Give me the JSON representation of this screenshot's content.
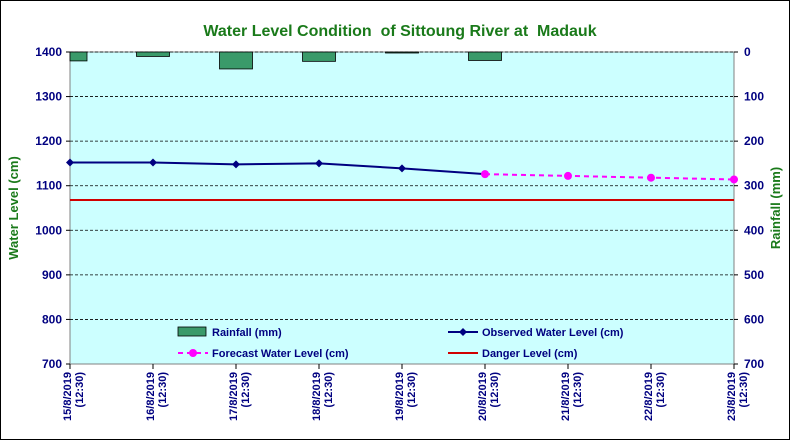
{
  "chart_data": {
    "type": "line",
    "title": "Water Level Condition  of Sittoung River at  Madauk",
    "ylabel_left": "Water Level (cm)",
    "ylabel_right": "Rainfall (mm)",
    "x_dates": [
      "15/8/2019",
      "16/8/2019",
      "17/8/2019",
      "18/8/2019",
      "19/8/2019",
      "20/8/2019",
      "21/8/2019",
      "22/8/2019",
      "23/8/2019"
    ],
    "x_time": "(12:30)",
    "ylim_left": [
      700,
      1400
    ],
    "yticks_left": [
      700,
      800,
      900,
      1000,
      1100,
      1200,
      1300,
      1400
    ],
    "ylim_right_inverted": [
      0,
      700
    ],
    "yticks_right": [
      0,
      100,
      200,
      300,
      400,
      500,
      600,
      700
    ],
    "grid": "horizontal dashed",
    "legend_placement": "bottom",
    "series": [
      {
        "name": "Rainfall (mm)",
        "kind": "bar",
        "axis": "right",
        "color": "#3a9a6a",
        "values": [
          20,
          10,
          38,
          21,
          2,
          19,
          null,
          null,
          null
        ]
      },
      {
        "name": "Observed Water Level (cm)",
        "kind": "line",
        "axis": "left",
        "color": "#000080",
        "values": [
          1152,
          1152,
          1148,
          1150,
          1139,
          1126,
          null,
          null,
          null
        ]
      },
      {
        "name": "Forecast Water Level (cm)",
        "kind": "dashed-line",
        "axis": "left",
        "color": "#ff00ff",
        "values": [
          null,
          null,
          null,
          null,
          null,
          1126,
          1122,
          1118,
          1114
        ]
      },
      {
        "name": "Danger Level (cm)",
        "kind": "line",
        "axis": "left",
        "color": "#d00000",
        "values": [
          1068,
          1068,
          1068,
          1068,
          1068,
          1068,
          1068,
          1068,
          1068
        ]
      }
    ]
  }
}
